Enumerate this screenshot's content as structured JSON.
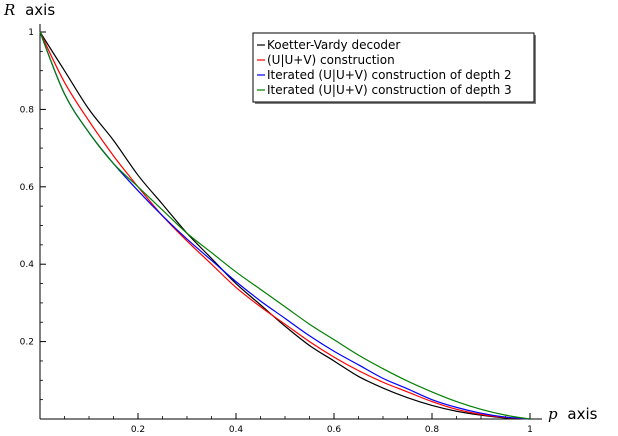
{
  "chart_data": {
    "type": "line",
    "xlabel_var": "p",
    "xlabel_unit": "axis",
    "ylabel_var": "R",
    "ylabel_unit": "axis",
    "xlim": [
      0,
      1
    ],
    "ylim": [
      0,
      1
    ],
    "x_ticks": [
      0.2,
      0.4,
      0.6,
      0.8,
      1
    ],
    "x_tick_labels": [
      "0.2",
      "0.4",
      "0.6",
      "0.8",
      "1"
    ],
    "y_ticks": [
      0.2,
      0.4,
      0.6,
      0.8,
      1
    ],
    "y_tick_labels": [
      "0.2",
      "0.4",
      "0.6",
      "0.8",
      "1"
    ],
    "grid": false,
    "legend_position": "top-right",
    "series": [
      {
        "name": "Koetter-Vardy decoder",
        "color": "#000000",
        "x": [
          0,
          0.05,
          0.1,
          0.15,
          0.2,
          0.25,
          0.3,
          0.35,
          0.4,
          0.45,
          0.5,
          0.55,
          0.6,
          0.65,
          0.7,
          0.75,
          0.8,
          0.85,
          0.9,
          0.95,
          1
        ],
        "y": [
          1,
          0.9,
          0.8,
          0.72,
          0.63,
          0.555,
          0.48,
          0.415,
          0.35,
          0.295,
          0.24,
          0.19,
          0.15,
          0.11,
          0.08,
          0.055,
          0.035,
          0.02,
          0.01,
          0.003,
          0
        ]
      },
      {
        "name": "(U|U+V) construction",
        "color": "#ff0000",
        "x": [
          0,
          0.05,
          0.1,
          0.15,
          0.2,
          0.25,
          0.3,
          0.35,
          0.4,
          0.45,
          0.5,
          0.55,
          0.6,
          0.65,
          0.7,
          0.75,
          0.8,
          0.85,
          0.9,
          0.95,
          1
        ],
        "y": [
          1,
          0.87,
          0.77,
          0.68,
          0.6,
          0.525,
          0.46,
          0.4,
          0.34,
          0.29,
          0.245,
          0.2,
          0.16,
          0.125,
          0.095,
          0.07,
          0.045,
          0.025,
          0.012,
          0.004,
          0
        ]
      },
      {
        "name": "Iterated (U|U+V) construction of depth 2",
        "color": "#0000ff",
        "x": [
          0,
          0.05,
          0.1,
          0.15,
          0.2,
          0.25,
          0.3,
          0.35,
          0.4,
          0.45,
          0.5,
          0.55,
          0.6,
          0.65,
          0.7,
          0.75,
          0.8,
          0.85,
          0.9,
          0.95,
          1
        ],
        "y": [
          1,
          0.84,
          0.74,
          0.66,
          0.59,
          0.525,
          0.465,
          0.41,
          0.355,
          0.305,
          0.26,
          0.215,
          0.175,
          0.14,
          0.105,
          0.078,
          0.05,
          0.03,
          0.015,
          0.005,
          0
        ]
      },
      {
        "name": "Iterated (U|U+V) construction of depth 3",
        "color": "#008000",
        "x": [
          0,
          0.05,
          0.1,
          0.15,
          0.2,
          0.25,
          0.3,
          0.35,
          0.4,
          0.45,
          0.5,
          0.55,
          0.6,
          0.65,
          0.7,
          0.75,
          0.8,
          0.85,
          0.9,
          0.95,
          1
        ],
        "y": [
          1,
          0.84,
          0.74,
          0.66,
          0.6,
          0.54,
          0.48,
          0.43,
          0.38,
          0.335,
          0.29,
          0.245,
          0.205,
          0.165,
          0.13,
          0.098,
          0.07,
          0.045,
          0.025,
          0.01,
          0
        ]
      }
    ]
  }
}
